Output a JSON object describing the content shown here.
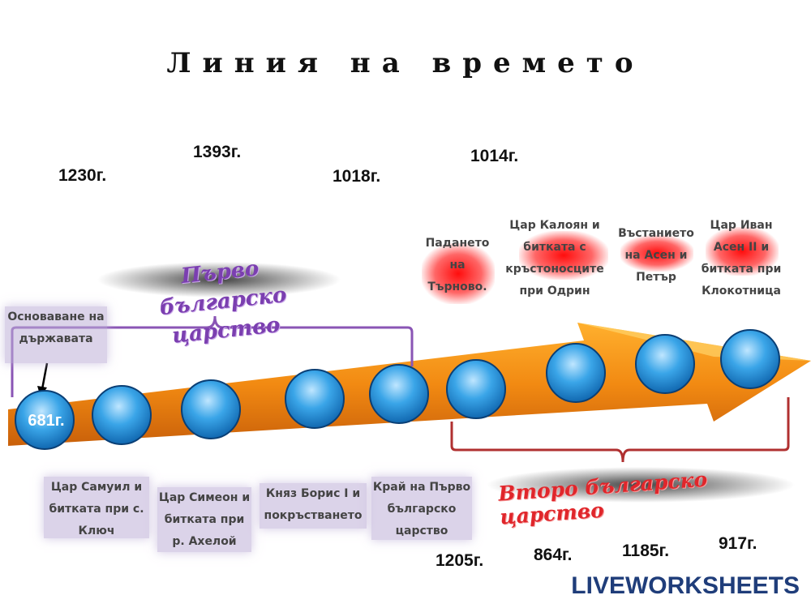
{
  "title": "Линия на времето",
  "kingdoms": {
    "first": "Първо българско царство",
    "second": "Второ българско царство"
  },
  "start_year": "681г.",
  "years": [
    "1230г.",
    "1393г.",
    "1018г.",
    "1014г.",
    "1205г.",
    "864г.",
    "1185г.",
    "917г."
  ],
  "events": [
    "Основаване на държавата",
    "Цар Самуил и битката при с. Ключ",
    "Цар Симеон и битката при р. Ахелой",
    "Княз Борис I и покръстването",
    "Край на Първо българско царство",
    "Падането на Търново.",
    "Цар Калоян и битката с кръстоносците при Одрин",
    "Въстанието на Асен и Петър",
    "Цар Иван Асен II и битката при Клокотница"
  ],
  "logo": "LIVEWORKSHEETS"
}
